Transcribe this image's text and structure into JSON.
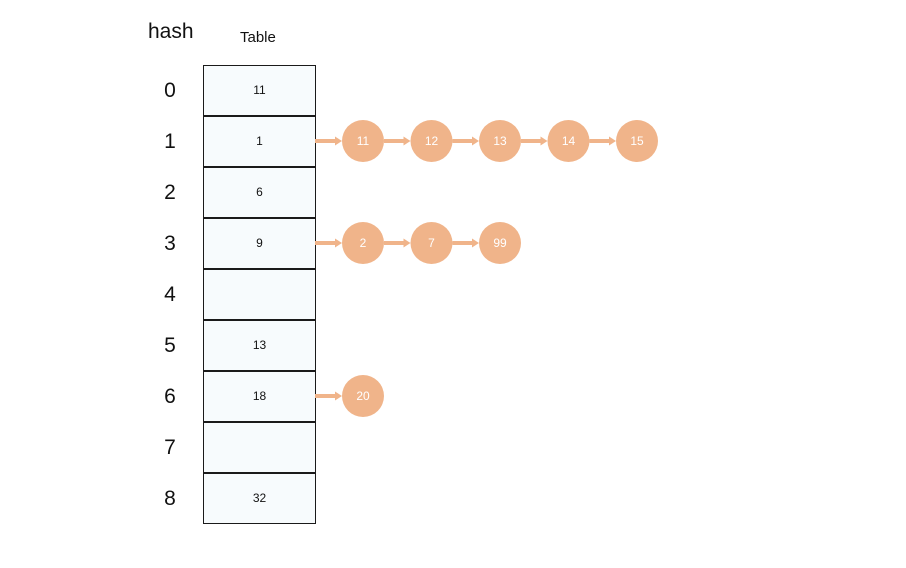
{
  "headers": {
    "hash": "hash",
    "table": "Table"
  },
  "rows": [
    {
      "index": "0",
      "value": "11",
      "chain": []
    },
    {
      "index": "1",
      "value": "1",
      "chain": [
        "11",
        "12",
        "13",
        "14",
        "15"
      ]
    },
    {
      "index": "2",
      "value": "6",
      "chain": []
    },
    {
      "index": "3",
      "value": "9",
      "chain": [
        "2",
        "7",
        "99"
      ]
    },
    {
      "index": "4",
      "value": "",
      "chain": []
    },
    {
      "index": "5",
      "value": "13",
      "chain": []
    },
    {
      "index": "6",
      "value": "18",
      "chain": [
        "20"
      ]
    },
    {
      "index": "7",
      "value": "",
      "chain": []
    },
    {
      "index": "8",
      "value": "32",
      "chain": []
    }
  ],
  "colors": {
    "node_fill": "#f0b48a",
    "arrow": "#f0b48a",
    "cell_fill": "#f7fbfd",
    "cell_border": "#1a1a1a"
  }
}
